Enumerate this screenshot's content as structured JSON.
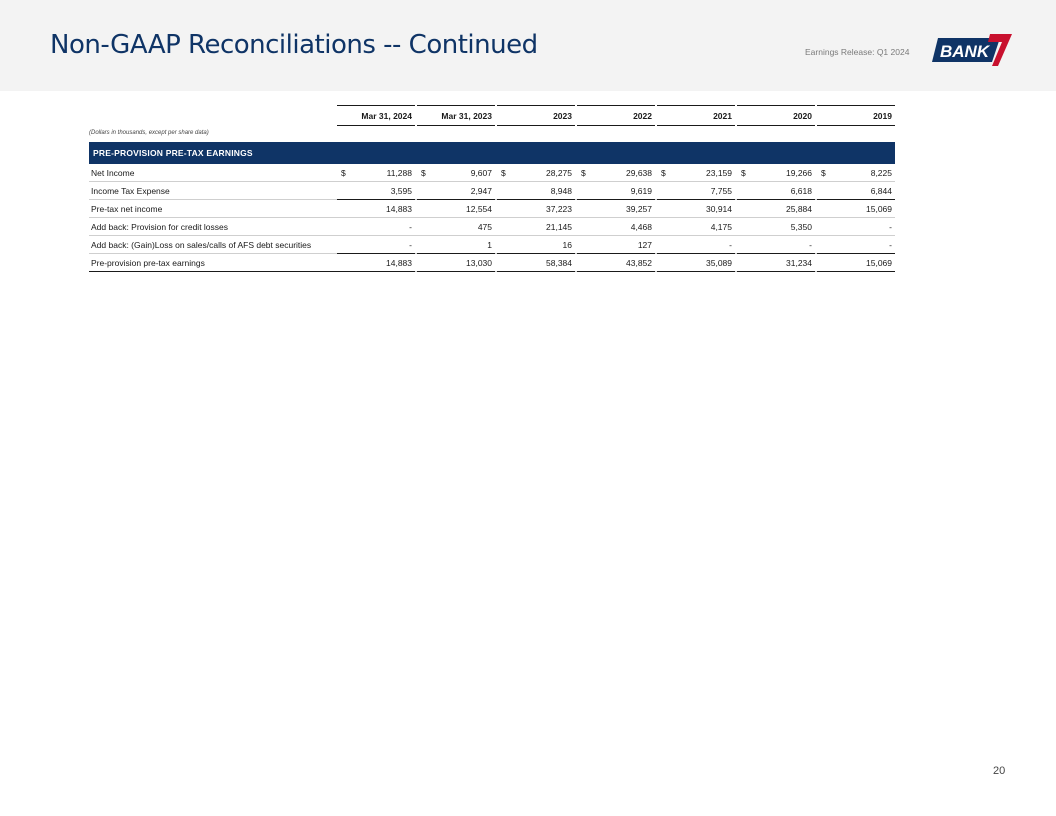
{
  "header": {
    "title": "Non-GAAP Reconciliations -- Continued",
    "release_label": "Earnings Release: Q1 2024",
    "logo_text": "BANK",
    "logo_mark": "7"
  },
  "table": {
    "columns": [
      "Mar 31, 2024",
      "Mar 31, 2023",
      "2023",
      "2022",
      "2021",
      "2020",
      "2019"
    ],
    "units_note": "(Dollars in thousands, except per share data)",
    "section_title": "PRE-PROVISION PRE-TAX EARNINGS",
    "rows": [
      {
        "label": "Net Income",
        "currency": "$",
        "values": [
          "11,288",
          "9,607",
          "28,275",
          "29,638",
          "23,159",
          "19,266",
          "8,225"
        ]
      },
      {
        "label": "Income Tax Expense",
        "values": [
          "3,595",
          "2,947",
          "8,948",
          "9,619",
          "7,755",
          "6,618",
          "6,844"
        ]
      },
      {
        "label": "Pre-tax net income",
        "values": [
          "14,883",
          "12,554",
          "37,223",
          "39,257",
          "30,914",
          "25,884",
          "15,069"
        ]
      },
      {
        "label": "Add back: Provision for credit losses",
        "values": [
          "-",
          "475",
          "21,145",
          "4,468",
          "4,175",
          "5,350",
          "-"
        ]
      },
      {
        "label": "Add back: (Gain)Loss on sales/calls of AFS debt securities",
        "values": [
          "-",
          "1",
          "16",
          "127",
          "-",
          "-",
          "-"
        ]
      },
      {
        "label": "Pre-provision pre-tax earnings",
        "values": [
          "14,883",
          "13,030",
          "58,384",
          "43,852",
          "35,089",
          "31,234",
          "15,069"
        ]
      }
    ]
  },
  "footer": {
    "page_number": "20"
  },
  "colors": {
    "brand_navy": "#0f3466",
    "brand_red": "#c8102e"
  }
}
